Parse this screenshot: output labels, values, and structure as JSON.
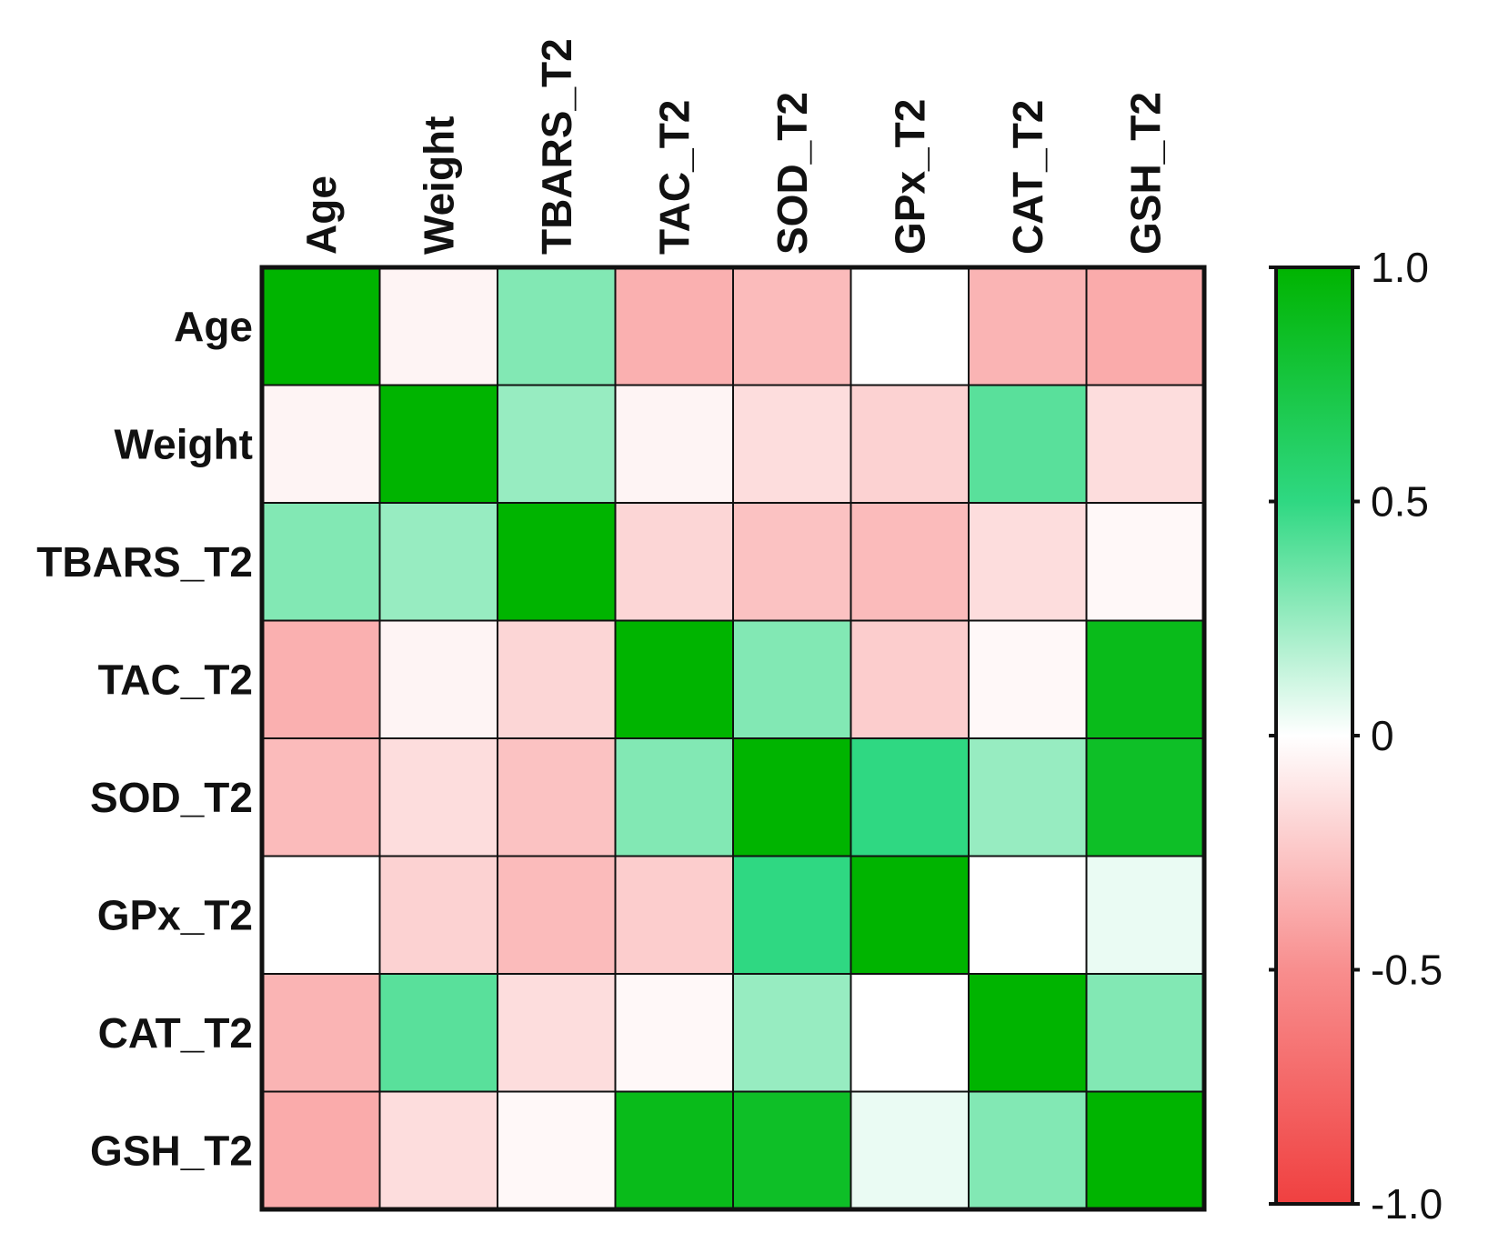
{
  "chart_data": {
    "type": "heatmap",
    "title": "",
    "row_labels": [
      "Age",
      "Weight",
      "TBARS_T2",
      "TAC_T2",
      "SOD_T2",
      "GPx_T2",
      "CAT_T2",
      "GSH_T2"
    ],
    "column_labels": [
      "Age",
      "Weight",
      "TBARS_T2",
      "TAC_T2",
      "SOD_T2",
      "GPx_T2",
      "CAT_T2",
      "GSH_T2"
    ],
    "values": [
      [
        1.0,
        -0.05,
        0.3,
        -0.35,
        -0.3,
        0.0,
        -0.33,
        -0.37
      ],
      [
        -0.05,
        1.0,
        0.25,
        -0.05,
        -0.15,
        -0.2,
        0.4,
        -0.15
      ],
      [
        0.3,
        0.25,
        1.0,
        -0.18,
        -0.27,
        -0.3,
        -0.15,
        -0.03
      ],
      [
        -0.35,
        -0.05,
        -0.18,
        1.0,
        0.3,
        -0.22,
        -0.03,
        0.9
      ],
      [
        -0.3,
        -0.15,
        -0.27,
        0.3,
        1.0,
        0.5,
        0.25,
        0.85
      ],
      [
        0.0,
        -0.2,
        -0.3,
        -0.22,
        0.5,
        1.0,
        0.0,
        0.05
      ],
      [
        -0.33,
        0.4,
        -0.15,
        -0.03,
        0.25,
        0.0,
        1.0,
        0.3
      ],
      [
        -0.37,
        -0.15,
        -0.03,
        0.9,
        0.85,
        0.05,
        0.3,
        1.0
      ]
    ],
    "colorbar": {
      "range": [
        -1.0,
        1.0
      ],
      "ticks": [
        1.0,
        0.5,
        0,
        -0.5,
        -1.0
      ],
      "tick_labels": [
        "1.0",
        "0.5",
        "0",
        "-0.5",
        "-1.0"
      ],
      "stops": [
        {
          "value": -1.0,
          "color": "#f04040"
        },
        {
          "value": -0.5,
          "color": "#f88e8e"
        },
        {
          "value": 0.0,
          "color": "#ffffff"
        },
        {
          "value": 0.5,
          "color": "#2fd882"
        },
        {
          "value": 1.0,
          "color": "#00b400"
        }
      ]
    },
    "legend_position": "right"
  }
}
